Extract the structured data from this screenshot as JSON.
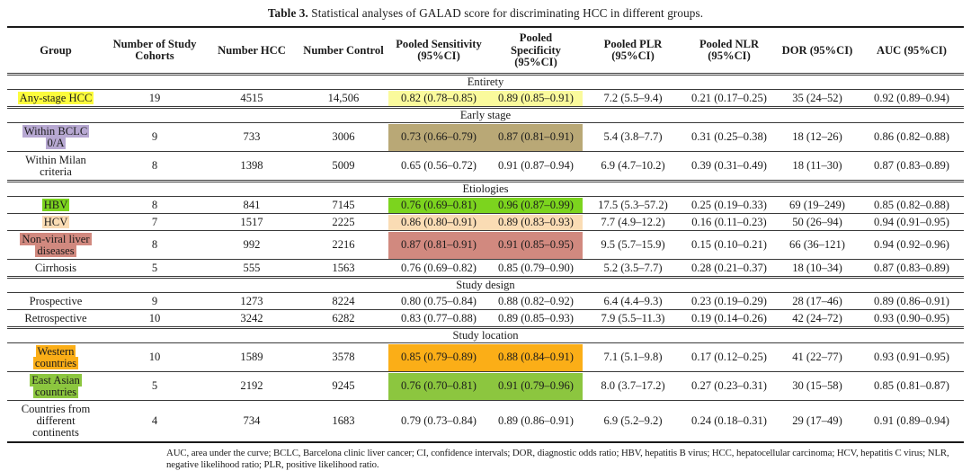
{
  "caption": {
    "label": "Table 3.",
    "text": " Statistical analyses of GALAD score for discriminating HCC in different groups."
  },
  "table": {
    "columns": [
      "Group",
      "Number of Study Cohorts",
      "Number HCC",
      "Number Control",
      "Pooled Sensitivity (95%CI)",
      "Pooled Specificity (95%CI)",
      "Pooled PLR (95%CI)",
      "Pooled NLR (95%CI)",
      "DOR (95%CI)",
      "AUC (95%CI)"
    ],
    "highlight_colors": {
      "yellow_label": "#fcfc3d",
      "yellow_pale": "#fafa9c",
      "lavender": "#b7a8d2",
      "dark_khaki": "#b9a876",
      "green_bright": "#7cd41e",
      "peach": "#fadcb4",
      "dusty_rose": "#d1897f",
      "amber": "#fbae17",
      "apple_green": "#8cc63f"
    },
    "sections": [
      {
        "title": "Entirety",
        "rows": [
          {
            "group": "Any-stage HCC",
            "group_highlight": "#fcfc3d",
            "value_highlight": "#fafa9c",
            "cells": [
              "19",
              "4515",
              "14,506",
              "0.82 (0.78–0.85)",
              "0.89 (0.85–0.91)",
              "7.2 (5.5–9.4)",
              "0.21 (0.17–0.25)",
              "35 (24–52)",
              "0.92 (0.89–0.94)"
            ]
          }
        ]
      },
      {
        "title": "Early stage",
        "rows": [
          {
            "group": "Within BCLC 0/A",
            "group_highlight": "#b7a8d2",
            "value_highlight": "#b9a876",
            "cells": [
              "9",
              "733",
              "3006",
              "0.73 (0.66–0.79)",
              "0.87 (0.81–0.91)",
              "5.4 (3.8–7.7)",
              "0.31 (0.25–0.38)",
              "18 (12–26)",
              "0.86 (0.82–0.88)"
            ]
          },
          {
            "group": "Within Milan criteria",
            "group_highlight": null,
            "value_highlight": null,
            "cells": [
              "8",
              "1398",
              "5009",
              "0.65 (0.56–0.72)",
              "0.91 (0.87–0.94)",
              "6.9 (4.7–10.2)",
              "0.39 (0.31–0.49)",
              "18 (11–30)",
              "0.87 (0.83–0.89)"
            ]
          }
        ]
      },
      {
        "title": "Etiologies",
        "rows": [
          {
            "group": "HBV",
            "group_highlight": "#7cd41e",
            "value_highlight": "#7cd41e",
            "cells": [
              "8",
              "841",
              "7145",
              "0.76 (0.69–0.81)",
              "0.96 (0.87–0.99)",
              "17.5 (5.3–57.2)",
              "0.25 (0.19–0.33)",
              "69 (19–249)",
              "0.85 (0.82–0.88)"
            ]
          },
          {
            "group": "HCV",
            "group_highlight": "#fadcb4",
            "value_highlight": "#fadcb4",
            "cells": [
              "7",
              "1517",
              "2225",
              "0.86 (0.80–0.91)",
              "0.89 (0.83–0.93)",
              "7.7 (4.9–12.2)",
              "0.16 (0.11–0.23)",
              "50 (26–94)",
              "0.94 (0.91–0.95)"
            ]
          },
          {
            "group": "Non-viral liver diseases",
            "group_highlight": "#d1897f",
            "value_highlight": "#d1897f",
            "cells": [
              "8",
              "992",
              "2216",
              "0.87 (0.81–0.91)",
              "0.91 (0.85–0.95)",
              "9.5 (5.7–15.9)",
              "0.15 (0.10–0.21)",
              "66 (36–121)",
              "0.94 (0.92–0.96)"
            ]
          },
          {
            "group": "Cirrhosis",
            "group_highlight": null,
            "value_highlight": null,
            "cells": [
              "5",
              "555",
              "1563",
              "0.76 (0.69–0.82)",
              "0.85 (0.79–0.90)",
              "5.2 (3.5–7.7)",
              "0.28 (0.21–0.37)",
              "18 (10–34)",
              "0.87 (0.83–0.89)"
            ]
          }
        ]
      },
      {
        "title": "Study design",
        "rows": [
          {
            "group": "Prospective",
            "group_highlight": null,
            "value_highlight": null,
            "cells": [
              "9",
              "1273",
              "8224",
              "0.80 (0.75–0.84)",
              "0.88 (0.82–0.92)",
              "6.4 (4.4–9.3)",
              "0.23 (0.19–0.29)",
              "28 (17–46)",
              "0.89 (0.86–0.91)"
            ]
          },
          {
            "group": "Retrospective",
            "group_highlight": null,
            "value_highlight": null,
            "cells": [
              "10",
              "3242",
              "6282",
              "0.83 (0.77–0.88)",
              "0.89 (0.85–0.93)",
              "7.9 (5.5–11.3)",
              "0.19 (0.14–0.26)",
              "42 (24–72)",
              "0.93 (0.90–0.95)"
            ]
          }
        ]
      },
      {
        "title": "Study location",
        "rows": [
          {
            "group": "Western countries",
            "group_highlight": "#fbae17",
            "value_highlight": "#fbae17",
            "cells": [
              "10",
              "1589",
              "3578",
              "0.85 (0.79–0.89)",
              "0.88 (0.84–0.91)",
              "7.1 (5.1–9.8)",
              "0.17 (0.12–0.25)",
              "41 (22–77)",
              "0.93 (0.91–0.95)"
            ]
          },
          {
            "group": "East Asian countries",
            "group_highlight": "#8cc63f",
            "value_highlight": "#8cc63f",
            "cells": [
              "5",
              "2192",
              "9245",
              "0.76 (0.70–0.81)",
              "0.91 (0.79–0.96)",
              "8.0 (3.7–17.2)",
              "0.27 (0.23–0.31)",
              "30 (15–58)",
              "0.85 (0.81–0.87)"
            ]
          },
          {
            "group": "Countries from different continents",
            "group_highlight": null,
            "value_highlight": null,
            "cells": [
              "4",
              "734",
              "1683",
              "0.79 (0.73–0.84)",
              "0.89 (0.86–0.91)",
              "6.9 (5.2–9.2)",
              "0.24 (0.18–0.31)",
              "29 (17–49)",
              "0.91 (0.89–0.94)"
            ]
          }
        ]
      }
    ]
  },
  "footnote": "AUC, area under the curve; BCLC, Barcelona clinic liver cancer; CI, confidence intervals; DOR, diagnostic odds ratio; HBV, hepatitis B virus; HCC, hepatocellular carcinoma; HCV, hepatitis C virus; NLR, negative likelihood ratio; PLR, positive likelihood ratio."
}
